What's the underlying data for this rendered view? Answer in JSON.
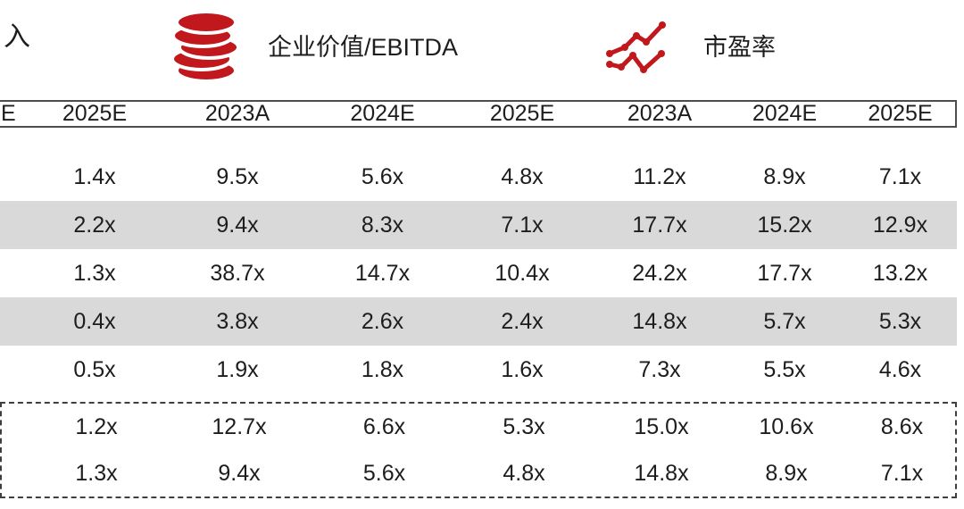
{
  "page": {
    "background": "#ffffff",
    "accent_red": "#c1181d",
    "shade_gray": "#d9d9d9",
    "border_dark": "#4d4d4d",
    "text_color": "#1d1d1d"
  },
  "legend": {
    "cropped_item_label": "入",
    "items": [
      {
        "icon": "coins-icon",
        "label": "企业价值/EBITDA"
      },
      {
        "icon": "line-chart-icon",
        "label": "市盈率"
      }
    ]
  },
  "table": {
    "header": [
      "E",
      "2025E",
      "2023A",
      "2024E",
      "2025E",
      "2023A",
      "2024E",
      "2025E"
    ],
    "rows": [
      {
        "shaded": false,
        "cells": [
          "",
          "1.4x",
          "9.5x",
          "5.6x",
          "4.8x",
          "11.2x",
          "8.9x",
          "7.1x"
        ]
      },
      {
        "shaded": true,
        "cells": [
          "",
          "2.2x",
          "9.4x",
          "8.3x",
          "7.1x",
          "17.7x",
          "15.2x",
          "12.9x"
        ]
      },
      {
        "shaded": false,
        "cells": [
          "",
          "1.3x",
          "38.7x",
          "14.7x",
          "10.4x",
          "24.2x",
          "17.7x",
          "13.2x"
        ]
      },
      {
        "shaded": true,
        "cells": [
          "",
          "0.4x",
          "3.8x",
          "2.6x",
          "2.4x",
          "14.8x",
          "5.7x",
          "5.3x"
        ]
      },
      {
        "shaded": false,
        "cells": [
          "",
          "0.5x",
          "1.9x",
          "1.8x",
          "1.6x",
          "7.3x",
          "5.5x",
          "4.6x"
        ]
      }
    ],
    "summary_rows": [
      {
        "cells": [
          "",
          "1.2x",
          "12.7x",
          "6.6x",
          "5.3x",
          "15.0x",
          "10.6x",
          "8.6x"
        ]
      },
      {
        "cells": [
          "",
          "1.3x",
          "9.4x",
          "5.6x",
          "4.8x",
          "14.8x",
          "8.9x",
          "7.1x"
        ]
      }
    ]
  }
}
